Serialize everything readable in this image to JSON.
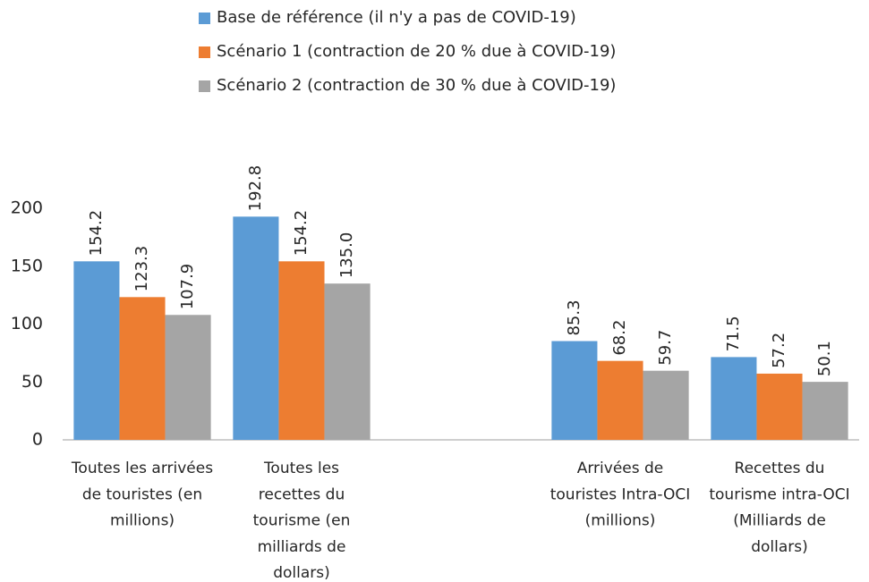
{
  "chart_data": {
    "type": "bar",
    "categories": [
      "Toutes les arrivées\nde touristes (en\nmillions)",
      "Toutes les\nrecettes du\ntourisme (en\nmilliards de\ndollars)",
      null,
      "Arrivées de\ntouristes Intra-OCI\n(millions)",
      "Recettes du\ntourisme intra-OCI\n(Milliards de\ndollars)"
    ],
    "series": [
      {
        "name": "Base de référence (il n'y a pas de COVID-19)",
        "color": "#5b9bd5",
        "values": [
          154.2,
          192.8,
          null,
          85.3,
          71.5
        ]
      },
      {
        "name": "Scénario 1 (contraction de 20 % due à COVID-19)",
        "color": "#ed7d31",
        "values": [
          123.3,
          154.2,
          null,
          68.2,
          57.2
        ]
      },
      {
        "name": "Scénario 2 (contraction de 30 % due à COVID-19)",
        "color": "#a5a5a5",
        "values": [
          107.9,
          135,
          null,
          59.7,
          50.1
        ],
        "value_labels": [
          "107.9",
          "135.0",
          null,
          "59.7",
          "50.1"
        ]
      }
    ],
    "ylim": [
      0,
      200
    ],
    "yticks": [
      0,
      50,
      100,
      150,
      200
    ],
    "grid": false,
    "legend": "top"
  }
}
